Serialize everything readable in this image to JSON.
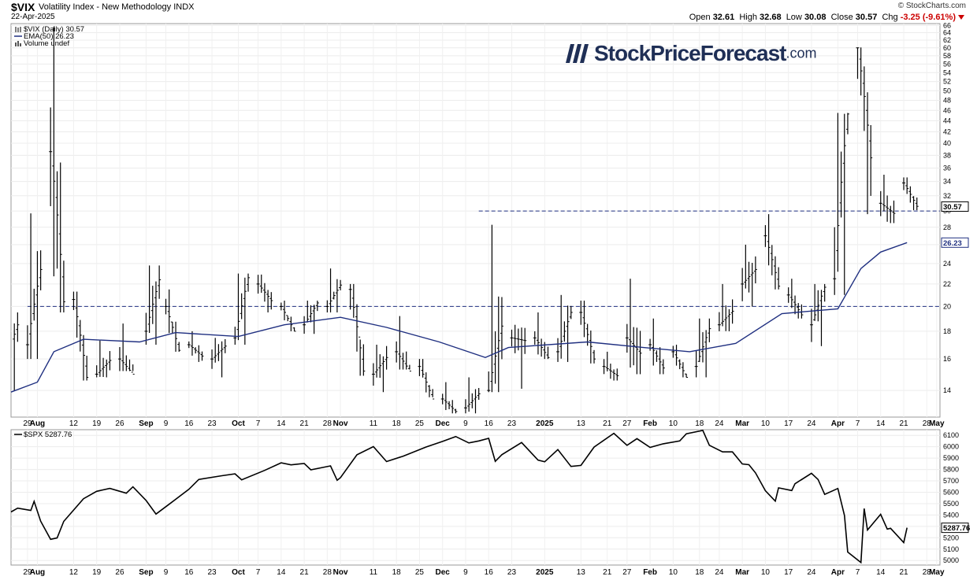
{
  "header": {
    "symbol": "$VIX",
    "name": "Volatility Index - New Methodology",
    "exchange": "INDX",
    "date": "22-Apr-2025",
    "source": "© StockCharts.com",
    "open_label": "Open",
    "open": "32.61",
    "high_label": "High",
    "high": "32.68",
    "low_label": "Low",
    "low": "30.08",
    "close_label": "Close",
    "close": "30.57",
    "chg_label": "Chg",
    "chg": "-3.25 (-9.61%)",
    "chg_color": "#cc0000"
  },
  "logo": {
    "main": "StockPriceForecast",
    "suffix": ".com",
    "color": "#1f2f56"
  },
  "chart_data": [
    {
      "type": "bar",
      "subtype": "ohlc",
      "title": "$VIX (Daily) 30.57",
      "legend": [
        {
          "label": "$VIX (Daily) 30.57",
          "color": "#000000"
        },
        {
          "label": "EMA(50) 26.23",
          "color": "#1f2f80"
        },
        {
          "label": "Volume undef",
          "color": "#555555"
        }
      ],
      "yscale": "log",
      "ylim": [
        12.5,
        66.5
      ],
      "yticks": [
        14,
        16,
        18,
        20,
        22,
        24,
        26,
        28,
        30,
        32,
        34,
        36,
        38,
        40,
        42,
        44,
        46,
        48,
        50,
        52,
        54,
        56,
        58,
        60,
        62,
        64,
        66
      ],
      "current_value_label": "30.57",
      "ema_value_label": "26.23",
      "reference_lines": [
        {
          "value": 30.0,
          "from": "2024-12-13",
          "style": "dashed"
        },
        {
          "value": 20.0,
          "from": "2024-07-29",
          "style": "dashed"
        }
      ],
      "date_range": [
        "2024-07-24",
        "2025-05-02"
      ],
      "x_ticks": [
        {
          "label": "29",
          "date": "2024-07-29"
        },
        {
          "label": "Aug",
          "date": "2024-08-01"
        },
        {
          "label": "12",
          "date": "2024-08-12"
        },
        {
          "label": "19",
          "date": "2024-08-19"
        },
        {
          "label": "26",
          "date": "2024-08-26"
        },
        {
          "label": "Sep",
          "date": "2024-09-03"
        },
        {
          "label": "9",
          "date": "2024-09-09"
        },
        {
          "label": "16",
          "date": "2024-09-16"
        },
        {
          "label": "23",
          "date": "2024-09-23"
        },
        {
          "label": "Oct",
          "date": "2024-10-01"
        },
        {
          "label": "7",
          "date": "2024-10-07"
        },
        {
          "label": "14",
          "date": "2024-10-14"
        },
        {
          "label": "21",
          "date": "2024-10-21"
        },
        {
          "label": "28",
          "date": "2024-10-28"
        },
        {
          "label": "Nov",
          "date": "2024-11-01"
        },
        {
          "label": "11",
          "date": "2024-11-11"
        },
        {
          "label": "18",
          "date": "2024-11-18"
        },
        {
          "label": "25",
          "date": "2024-11-25"
        },
        {
          "label": "Dec",
          "date": "2024-12-02"
        },
        {
          "label": "9",
          "date": "2024-12-09"
        },
        {
          "label": "16",
          "date": "2024-12-16"
        },
        {
          "label": "23",
          "date": "2024-12-23"
        },
        {
          "label": "2025",
          "date": "2025-01-02"
        },
        {
          "label": "13",
          "date": "2025-01-13"
        },
        {
          "label": "21",
          "date": "2025-01-21"
        },
        {
          "label": "27",
          "date": "2025-01-27"
        },
        {
          "label": "Feb",
          "date": "2025-02-03"
        },
        {
          "label": "10",
          "date": "2025-02-10"
        },
        {
          "label": "18",
          "date": "2025-02-18"
        },
        {
          "label": "24",
          "date": "2025-02-24"
        },
        {
          "label": "Mar",
          "date": "2025-03-03"
        },
        {
          "label": "10",
          "date": "2025-03-10"
        },
        {
          "label": "17",
          "date": "2025-03-17"
        },
        {
          "label": "24",
          "date": "2025-03-24"
        },
        {
          "label": "Apr",
          "date": "2025-04-01"
        },
        {
          "label": "7",
          "date": "2025-04-07"
        },
        {
          "label": "14",
          "date": "2025-04-14"
        },
        {
          "label": "21",
          "date": "2025-04-21"
        },
        {
          "label": "28",
          "date": "2025-04-28"
        },
        {
          "label": "May",
          "date": "2025-05-01"
        }
      ],
      "ohlc_columns": [
        "date",
        "open",
        "high",
        "low",
        "close"
      ],
      "ohlc_weekly": [
        [
          "2024-07-22",
          15.6,
          19.5,
          14.0,
          18.5
        ],
        [
          "2024-07-29",
          17.0,
          29.7,
          16.0,
          23.4
        ],
        [
          "2024-08-05",
          38.6,
          65.7,
          19.5,
          20.4
        ],
        [
          "2024-08-12",
          20.6,
          21.3,
          14.6,
          14.8
        ],
        [
          "2024-08-19",
          15.0,
          17.3,
          14.8,
          15.9
        ],
        [
          "2024-08-26",
          16.0,
          18.6,
          15.2,
          15.0
        ],
        [
          "2024-09-03",
          18.0,
          23.8,
          17.0,
          22.4
        ],
        [
          "2024-09-09",
          20.0,
          21.5,
          16.5,
          16.6
        ],
        [
          "2024-09-16",
          17.0,
          18.0,
          15.8,
          16.2
        ],
        [
          "2024-09-23",
          16.0,
          17.5,
          14.8,
          16.9
        ],
        [
          "2024-09-30",
          17.5,
          23.0,
          17.0,
          22.6
        ],
        [
          "2024-10-07",
          22.0,
          22.9,
          19.5,
          20.5
        ],
        [
          "2024-10-14",
          20.0,
          20.5,
          18.0,
          18.0
        ],
        [
          "2024-10-21",
          18.5,
          20.5,
          17.8,
          20.3
        ],
        [
          "2024-10-28",
          20.0,
          23.5,
          19.5,
          21.9
        ],
        [
          "2024-11-04",
          21.5,
          22.0,
          14.9,
          15.2
        ],
        [
          "2024-11-11",
          15.0,
          17.0,
          13.9,
          16.1
        ],
        [
          "2024-11-18",
          16.5,
          19.2,
          15.3,
          15.2
        ],
        [
          "2024-11-25",
          15.5,
          16.0,
          13.6,
          13.5
        ],
        [
          "2024-12-02",
          13.5,
          14.5,
          12.7,
          12.8
        ],
        [
          "2024-12-09",
          13.0,
          14.8,
          12.7,
          13.8
        ],
        [
          "2024-12-16",
          14.0,
          28.3,
          13.9,
          18.4
        ],
        [
          "2024-12-23",
          17.5,
          18.5,
          14.1,
          17.3
        ],
        [
          "2024-12-30",
          17.5,
          19.5,
          16.0,
          16.1
        ],
        [
          "2025-01-06",
          16.5,
          21.0,
          15.8,
          19.5
        ],
        [
          "2025-01-13",
          19.5,
          20.5,
          15.7,
          16.0
        ],
        [
          "2025-01-20",
          15.5,
          16.5,
          14.6,
          14.9
        ],
        [
          "2025-01-27",
          17.5,
          22.5,
          15.0,
          16.4
        ],
        [
          "2025-02-03",
          17.0,
          19.0,
          15.0,
          15.4
        ],
        [
          "2025-02-10",
          16.5,
          17.0,
          14.8,
          14.8
        ],
        [
          "2025-02-17",
          15.5,
          19.0,
          14.8,
          18.2
        ],
        [
          "2025-02-24",
          18.5,
          22.0,
          18.0,
          19.6
        ],
        [
          "2025-03-03",
          22.0,
          26.0,
          20.0,
          23.4
        ],
        [
          "2025-03-10",
          27.0,
          29.6,
          21.5,
          21.8
        ],
        [
          "2025-03-17",
          21.0,
          22.5,
          19.0,
          19.3
        ],
        [
          "2025-03-24",
          18.5,
          22.0,
          16.9,
          21.7
        ],
        [
          "2025-03-31",
          22.5,
          45.5,
          21.0,
          45.3
        ],
        [
          "2025-04-07",
          60.0,
          60.1,
          29.6,
          37.6
        ],
        [
          "2025-04-14",
          31.0,
          35.0,
          28.5,
          29.7
        ],
        [
          "2025-04-21",
          33.8,
          34.6,
          30.1,
          30.6
        ]
      ],
      "ema50_points": [
        [
          "2024-07-24",
          13.9
        ],
        [
          "2024-08-01",
          14.5
        ],
        [
          "2024-08-06",
          16.5
        ],
        [
          "2024-08-15",
          17.4
        ],
        [
          "2024-09-01",
          17.2
        ],
        [
          "2024-09-12",
          17.9
        ],
        [
          "2024-10-01",
          17.6
        ],
        [
          "2024-10-15",
          18.5
        ],
        [
          "2024-11-01",
          19.1
        ],
        [
          "2024-11-15",
          18.3
        ],
        [
          "2024-12-01",
          17.2
        ],
        [
          "2024-12-15",
          16.1
        ],
        [
          "2024-12-22",
          16.8
        ],
        [
          "2025-01-15",
          17.2
        ],
        [
          "2025-02-01",
          16.8
        ],
        [
          "2025-02-15",
          16.5
        ],
        [
          "2025-03-01",
          17.1
        ],
        [
          "2025-03-15",
          19.4
        ],
        [
          "2025-04-01",
          19.8
        ],
        [
          "2025-04-08",
          23.5
        ],
        [
          "2025-04-14",
          25.2
        ],
        [
          "2025-04-22",
          26.23
        ]
      ]
    },
    {
      "type": "line",
      "title": "$SPX 5287.76",
      "legend": [
        {
          "label": "$SPX 5287.76",
          "color": "#000000"
        }
      ],
      "ylim": [
        4960,
        6150
      ],
      "yticks": [
        5000,
        5100,
        5200,
        5300,
        5400,
        5500,
        5600,
        5700,
        5800,
        5900,
        6000,
        6100
      ],
      "current_value_label": "5287.76",
      "points": [
        [
          "2024-07-24",
          5427
        ],
        [
          "2024-07-26",
          5460
        ],
        [
          "2024-07-30",
          5440
        ],
        [
          "2024-07-31",
          5520
        ],
        [
          "2024-08-02",
          5346
        ],
        [
          "2024-08-05",
          5186
        ],
        [
          "2024-08-07",
          5199
        ],
        [
          "2024-08-09",
          5344
        ],
        [
          "2024-08-15",
          5543
        ],
        [
          "2024-08-19",
          5608
        ],
        [
          "2024-08-23",
          5634
        ],
        [
          "2024-08-28",
          5592
        ],
        [
          "2024-08-30",
          5648
        ],
        [
          "2024-09-03",
          5528
        ],
        [
          "2024-09-06",
          5408
        ],
        [
          "2024-09-10",
          5495
        ],
        [
          "2024-09-16",
          5626
        ],
        [
          "2024-09-19",
          5713
        ],
        [
          "2024-09-26",
          5745
        ],
        [
          "2024-09-30",
          5762
        ],
        [
          "2024-10-02",
          5709
        ],
        [
          "2024-10-09",
          5792
        ],
        [
          "2024-10-14",
          5859
        ],
        [
          "2024-10-17",
          5841
        ],
        [
          "2024-10-21",
          5853
        ],
        [
          "2024-10-23",
          5797
        ],
        [
          "2024-10-29",
          5832
        ],
        [
          "2024-10-31",
          5705
        ],
        [
          "2024-11-01",
          5728
        ],
        [
          "2024-11-06",
          5929
        ],
        [
          "2024-11-11",
          6001
        ],
        [
          "2024-11-15",
          5870
        ],
        [
          "2024-11-20",
          5917
        ],
        [
          "2024-11-27",
          5998
        ],
        [
          "2024-12-02",
          6047
        ],
        [
          "2024-12-06",
          6090
        ],
        [
          "2024-12-10",
          6034
        ],
        [
          "2024-12-13",
          6051
        ],
        [
          "2024-12-16",
          6074
        ],
        [
          "2024-12-18",
          5872
        ],
        [
          "2024-12-20",
          5930
        ],
        [
          "2024-12-26",
          6037
        ],
        [
          "2024-12-31",
          5882
        ],
        [
          "2025-01-02",
          5868
        ],
        [
          "2025-01-06",
          5975
        ],
        [
          "2025-01-10",
          5827
        ],
        [
          "2025-01-13",
          5836
        ],
        [
          "2025-01-17",
          5997
        ],
        [
          "2025-01-23",
          6118
        ],
        [
          "2025-01-27",
          6012
        ],
        [
          "2025-01-30",
          6071
        ],
        [
          "2025-02-03",
          5994
        ],
        [
          "2025-02-07",
          6026
        ],
        [
          "2025-02-12",
          6051
        ],
        [
          "2025-02-14",
          6114
        ],
        [
          "2025-02-19",
          6144
        ],
        [
          "2025-02-21",
          6013
        ],
        [
          "2025-02-25",
          5955
        ],
        [
          "2025-02-28",
          5955
        ],
        [
          "2025-03-03",
          5849
        ],
        [
          "2025-03-05",
          5842
        ],
        [
          "2025-03-07",
          5770
        ],
        [
          "2025-03-10",
          5614
        ],
        [
          "2025-03-13",
          5522
        ],
        [
          "2025-03-14",
          5639
        ],
        [
          "2025-03-18",
          5615
        ],
        [
          "2025-03-19",
          5675
        ],
        [
          "2025-03-24",
          5767
        ],
        [
          "2025-03-26",
          5712
        ],
        [
          "2025-03-28",
          5581
        ],
        [
          "2025-04-01",
          5633
        ],
        [
          "2025-04-03",
          5396
        ],
        [
          "2025-04-04",
          5074
        ],
        [
          "2025-04-08",
          4982
        ],
        [
          "2025-04-09",
          5457
        ],
        [
          "2025-04-10",
          5268
        ],
        [
          "2025-04-14",
          5406
        ],
        [
          "2025-04-16",
          5276
        ],
        [
          "2025-04-17",
          5283
        ],
        [
          "2025-04-21",
          5158
        ],
        [
          "2025-04-22",
          5287.76
        ]
      ]
    }
  ]
}
